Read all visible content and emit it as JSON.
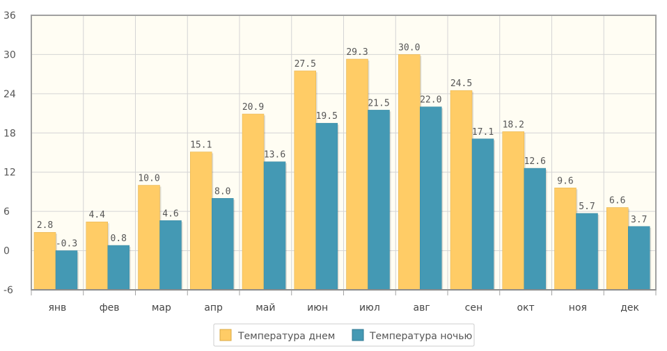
{
  "chart_data": {
    "type": "bar",
    "categories": [
      "янв",
      "фев",
      "мар",
      "апр",
      "май",
      "июн",
      "июл",
      "авг",
      "сен",
      "окт",
      "ноя",
      "дек"
    ],
    "series": [
      {
        "name": "Температура днем",
        "color": "#FFCC66",
        "values": [
          2.8,
          4.4,
          10.0,
          15.1,
          20.9,
          27.5,
          29.3,
          30.0,
          24.5,
          18.2,
          9.6,
          6.6
        ],
        "labels": [
          "2.8",
          "4.4",
          "10.0",
          "15.1",
          "20.9",
          "27.5",
          "29.3",
          "30.0",
          "24.5",
          "18.2",
          "9.6",
          "6.6"
        ]
      },
      {
        "name": "Температура ночью",
        "color": "#4499B4",
        "values": [
          -0.3,
          0.8,
          4.6,
          8.0,
          13.6,
          19.5,
          21.5,
          22.0,
          17.1,
          12.6,
          5.7,
          3.7
        ],
        "labels": [
          "-0.3",
          "0.8",
          "4.6",
          "8.0",
          "13.6",
          "19.5",
          "21.5",
          "22.0",
          "17.1",
          "12.6",
          "5.7",
          "3.7"
        ]
      }
    ],
    "ylim": [
      -6,
      36
    ],
    "yticks": [
      36,
      30,
      24,
      18,
      12,
      6,
      0,
      -6
    ],
    "ytick_labels": [
      "36",
      "30",
      "24",
      "18",
      "12",
      "6",
      "0",
      "-6"
    ],
    "grid": true,
    "legend_position": "bottom-center",
    "plot_background": "#FFFDF3"
  }
}
